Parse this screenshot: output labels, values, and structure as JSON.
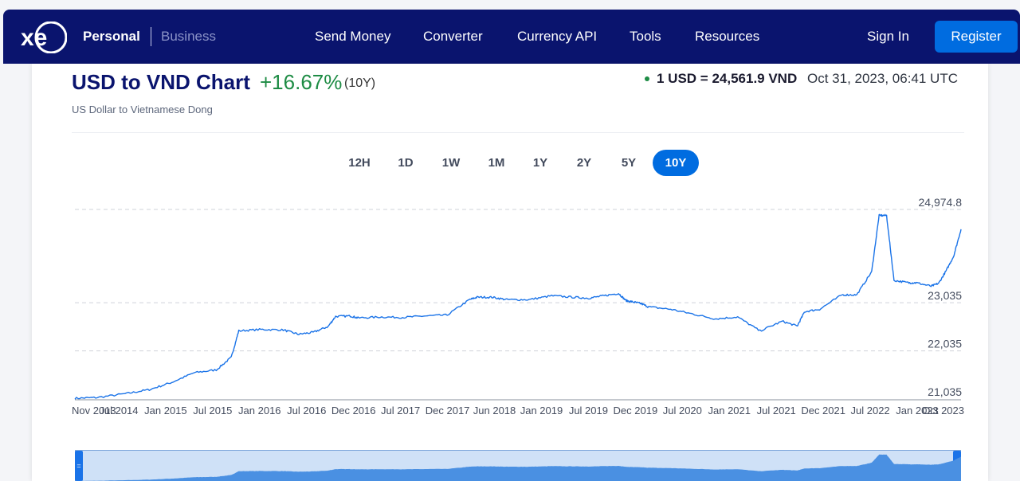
{
  "nav": {
    "personal": "Personal",
    "business": "Business",
    "links": [
      "Send Money",
      "Converter",
      "Currency API",
      "Tools",
      "Resources"
    ],
    "sign_in": "Sign In",
    "register": "Register"
  },
  "header": {
    "title": "USD to VND Chart",
    "change": "+16.67%",
    "period": "(10Y)",
    "subtitle": "US Dollar to Vietnamese Dong",
    "rate": "1 USD = 24,561.9 VND",
    "timestamp": "Oct 31, 2023, 06:41 UTC"
  },
  "ranges": [
    "12H",
    "1D",
    "1W",
    "1M",
    "1Y",
    "2Y",
    "5Y",
    "10Y"
  ],
  "active_range": "10Y",
  "colors": {
    "brand": "#0a146e",
    "accent": "#006ce0",
    "positive": "#1e8c45",
    "line": "#1a73e8"
  },
  "chart_data": {
    "type": "line",
    "series": [
      {
        "x": [
          "Nov 2013",
          "Feb 2014",
          "Jun 2014",
          "Sep 2014",
          "Dec 2014",
          "Mar 2015",
          "Jun 2015",
          "Aug 2015",
          "Sep 2015",
          "Dec 2015",
          "Mar 2016",
          "May 2016",
          "Jul 2016",
          "Sep 2016",
          "Oct 2016",
          "Dec 2016",
          "Jan 2017",
          "Apr 2017",
          "Jul 2017",
          "Oct 2017",
          "Jan 2018",
          "Apr 2018",
          "May 2018",
          "Jul 2018",
          "Sep 2018",
          "Dec 2018",
          "Mar 2019",
          "Jun 2019",
          "Aug 2019",
          "Oct 2019",
          "Dec 2019",
          "Jan 2020",
          "Feb 2020",
          "Mar 2020",
          "Apr 2020",
          "Jul 2020",
          "Oct 2020",
          "Jan 2021",
          "Apr 2021",
          "Jul 2021",
          "Oct 2021",
          "Dec 2021",
          "Jan 2022",
          "Mar 2022",
          "Jun 2022",
          "Aug 2022",
          "Oct 2022",
          "Nov 2022",
          "Dec 2022",
          "Jan 2023",
          "Mar 2023",
          "Apr 2023",
          "Jun 2023",
          "Jul 2023",
          "Aug 2023",
          "Sep 2023",
          "Oct 2023"
        ],
        "values": [
          21050,
          21065,
          21150,
          21230,
          21380,
          21580,
          21640,
          21900,
          22450,
          22480,
          22470,
          22380,
          22420,
          22540,
          22750,
          22760,
          22720,
          22740,
          22730,
          22760,
          22780,
          23100,
          23150,
          23150,
          23100,
          23100,
          23180,
          23150,
          23130,
          23180,
          23230,
          23080,
          23050,
          23020,
          22950,
          22900,
          22800,
          22700,
          22740,
          22450,
          22650,
          22550,
          22850,
          22900,
          23200,
          23200,
          23680,
          24850,
          24850,
          23500,
          23450,
          23450,
          23380,
          23440,
          23700,
          24000,
          24562
        ]
      }
    ],
    "y_ticks": [
      "21,035",
      "22,035",
      "23,035",
      "24,974.8"
    ],
    "x_ticks": [
      "Nov 2013",
      "Jul 2014",
      "Jan 2015",
      "Jul 2015",
      "Jan 2016",
      "Jul 2016",
      "Dec 2016",
      "Jul 2017",
      "Dec 2017",
      "Jun 2018",
      "Jan 2019",
      "Jul 2019",
      "Dec 2019",
      "Jul 2020",
      "Jan 2021",
      "Jul 2021",
      "Dec 2021",
      "Jul 2022",
      "Jan 2023",
      "Oct 2023"
    ],
    "ylim": [
      21035,
      24974.8
    ],
    "grid": true
  }
}
